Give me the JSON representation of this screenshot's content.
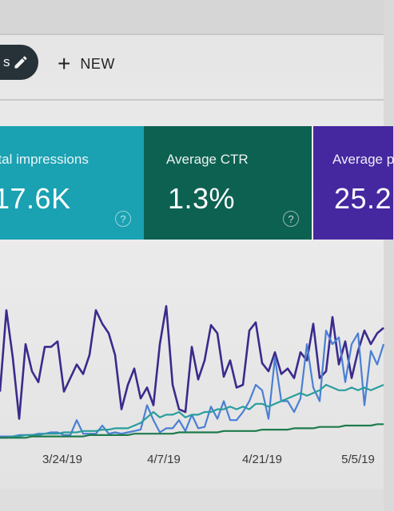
{
  "toolbar": {
    "pill_text": "s",
    "edit_icon": "pencil-icon",
    "new_icon": "plus-icon",
    "new_label": "NEW"
  },
  "cards": [
    {
      "label": "otal impressions",
      "value": "17.6K",
      "color": "#1aa1b2",
      "help_icon": "help-circle-icon"
    },
    {
      "label": "Average CTR",
      "value": "1.3%",
      "color": "#0d6151",
      "help_icon": "help-circle-icon"
    },
    {
      "label": "Average p",
      "value": "25.2",
      "color": "#4527a0"
    }
  ],
  "help_glyph": "?",
  "chart_data": {
    "type": "line",
    "x_tick_labels": [
      "3/24/19",
      "4/7/19",
      "4/21/19",
      "5/5/19"
    ],
    "series": [
      {
        "color": "#3b2a8c",
        "values": [
          35,
          95,
          60,
          15,
          70,
          50,
          42,
          68,
          68,
          72,
          35,
          45,
          55,
          48,
          62,
          95,
          85,
          78,
          62,
          22,
          40,
          52,
          30,
          38,
          25,
          70,
          98,
          40,
          22,
          20,
          68,
          44,
          58,
          84,
          78,
          46,
          58,
          38,
          40,
          80,
          86,
          56,
          50,
          64,
          48,
          52,
          45,
          64,
          58,
          85,
          45,
          50,
          90,
          55,
          72,
          45,
          65,
          80,
          70,
          78,
          82
        ]
      },
      {
        "color": "#4a7fd4",
        "values": [
          2,
          2,
          2,
          3,
          3,
          3,
          4,
          4,
          5,
          5,
          3,
          3,
          14,
          4,
          4,
          4,
          10,
          4,
          5,
          4,
          5,
          6,
          7,
          25,
          14,
          5,
          8,
          8,
          14,
          6,
          18,
          8,
          9,
          24,
          15,
          28,
          14,
          14,
          20,
          28,
          40,
          36,
          15,
          60,
          28,
          28,
          20,
          30,
          70,
          38,
          28,
          80,
          70,
          75,
          42,
          70,
          78,
          25,
          65,
          55,
          70
        ]
      },
      {
        "color": "#2a9d9d",
        "values": [
          1,
          1,
          2,
          2,
          3,
          3,
          3,
          4,
          4,
          4,
          5,
          5,
          5,
          6,
          6,
          6,
          7,
          7,
          8,
          8,
          8,
          10,
          12,
          16,
          20,
          16,
          18,
          18,
          20,
          16,
          18,
          18,
          20,
          20,
          22,
          22,
          24,
          22,
          24,
          22,
          26,
          26,
          24,
          26,
          28,
          30,
          32,
          34,
          32,
          34,
          36,
          40,
          38,
          36,
          36,
          38,
          36,
          38,
          36,
          38,
          40
        ]
      },
      {
        "color": "#1e7a4d",
        "values": [
          1,
          1,
          1,
          1,
          1,
          2,
          2,
          2,
          2,
          2,
          2,
          2,
          2,
          2,
          3,
          3,
          3,
          3,
          3,
          3,
          3,
          4,
          4,
          4,
          4,
          4,
          4,
          4,
          5,
          5,
          5,
          5,
          5,
          5,
          5,
          6,
          6,
          6,
          6,
          6,
          6,
          7,
          7,
          7,
          7,
          7,
          8,
          8,
          8,
          8,
          9,
          9,
          9,
          9,
          10,
          10,
          10,
          10,
          10,
          11,
          11
        ]
      }
    ]
  }
}
